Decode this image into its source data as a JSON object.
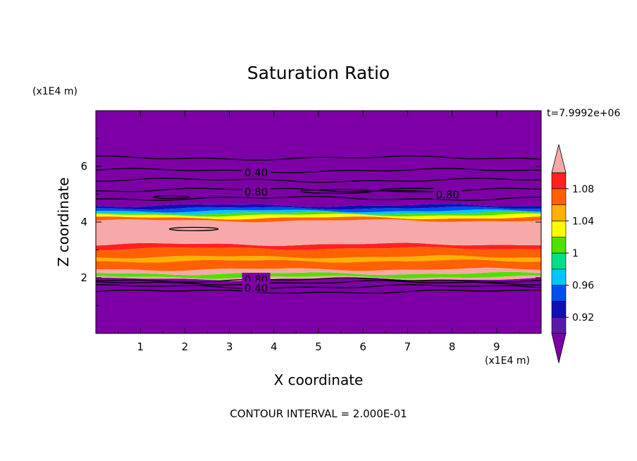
{
  "chart_data": {
    "type": "heatmap",
    "title": "Saturation Ratio",
    "xlabel": "X coordinate",
    "ylabel": "Z coordinate",
    "x_unit": "(x1E4 m)",
    "y_unit": "(x1E4 m)",
    "xlim": [
      0,
      10
    ],
    "ylim": [
      0,
      8
    ],
    "x_ticks": [
      "1",
      "2",
      "3",
      "4",
      "5",
      "6",
      "7",
      "8",
      "9"
    ],
    "y_ticks": [
      "2",
      "4",
      "6"
    ],
    "time_label": "t=7.9992e+06",
    "contour_interval_label": "CONTOUR INTERVAL = 2.000E-01",
    "contour_labels": [
      {
        "text": "0.40",
        "x": 3.6,
        "z": 5.8
      },
      {
        "text": "0.80",
        "x": 3.6,
        "z": 5.1
      },
      {
        "text": "0.80",
        "x": 7.9,
        "z": 5.0
      },
      {
        "text": "0.80",
        "x": 3.6,
        "z": 1.95
      },
      {
        "text": "0.40",
        "x": 3.6,
        "z": 1.65
      }
    ],
    "colorbar": {
      "labels": [
        "1.08",
        "1.04",
        "1",
        "0.96",
        "0.92"
      ],
      "label_values": [
        1.08,
        1.04,
        1.0,
        0.96,
        0.92
      ],
      "levels": [
        0.9,
        0.92,
        0.94,
        0.96,
        0.98,
        1.0,
        1.02,
        1.04,
        1.06,
        1.08,
        1.1
      ],
      "colors": [
        "#5a1aa8",
        "#1010b0",
        "#0050f0",
        "#00c8ff",
        "#00e08a",
        "#50e000",
        "#ffff00",
        "#ffb000",
        "#ff6000",
        "#ff2020"
      ],
      "under_color": "#7c00a6",
      "over_color": "#f7a8a8"
    },
    "bands": [
      {
        "z0": 0.0,
        "z1": 1.95,
        "color": "#7c00a6"
      },
      {
        "z0": 1.95,
        "z1": 2.02,
        "color": "#f7a8a8"
      },
      {
        "z0": 2.02,
        "z1": 2.15,
        "color": "#50e000"
      },
      {
        "z0": 2.15,
        "z1": 2.3,
        "color": "#f7a8a8"
      },
      {
        "z0": 2.3,
        "z1": 2.6,
        "color": "#ff6000"
      },
      {
        "z0": 2.6,
        "z1": 2.75,
        "color": "#ffb000"
      },
      {
        "z0": 2.75,
        "z1": 3.05,
        "color": "#ff6000"
      },
      {
        "z0": 3.05,
        "z1": 3.2,
        "color": "#ff2020"
      },
      {
        "z0": 3.2,
        "z1": 4.05,
        "color": "#f7a8a8"
      },
      {
        "z0": 4.05,
        "z1": 4.15,
        "color": "#ff6000"
      },
      {
        "z0": 4.15,
        "z1": 4.25,
        "color": "#ffff00"
      },
      {
        "z0": 4.25,
        "z1": 4.32,
        "color": "#50e000"
      },
      {
        "z0": 4.32,
        "z1": 4.4,
        "color": "#00c8ff"
      },
      {
        "z0": 4.4,
        "z1": 4.5,
        "color": "#0050f0"
      },
      {
        "z0": 4.5,
        "z1": 4.6,
        "color": "#1010b0"
      },
      {
        "z0": 4.6,
        "z1": 8.0,
        "color": "#7c00a6"
      }
    ],
    "contour_levels_z": [
      1.5,
      1.68,
      1.82,
      1.92,
      4.85,
      5.15,
      5.5,
      5.85,
      6.3
    ]
  }
}
